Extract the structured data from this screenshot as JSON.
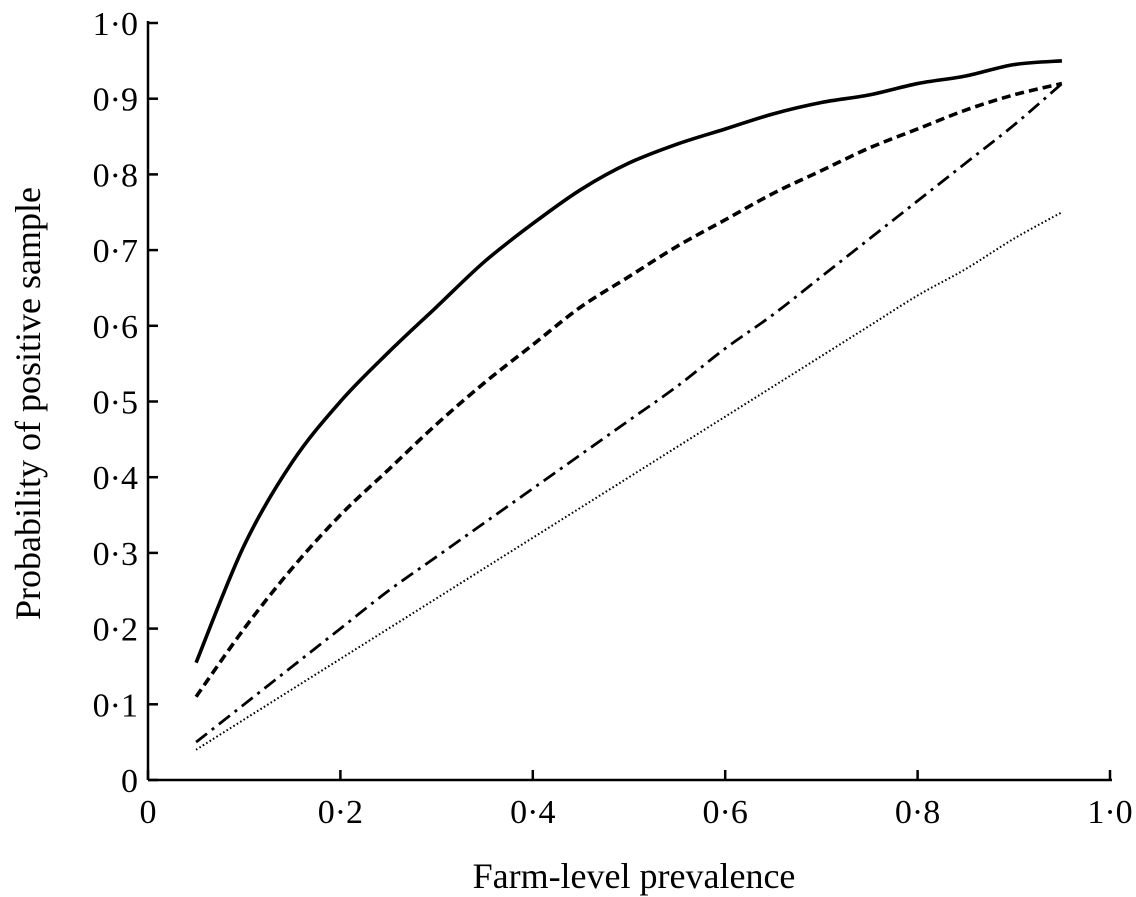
{
  "chart_data": {
    "type": "line",
    "title": "",
    "xlabel": "Farm-level prevalence",
    "ylabel": "Probability of positive sample",
    "xlim": [
      0,
      1.0
    ],
    "ylim": [
      0,
      1.0
    ],
    "x_ticks": [
      0,
      0.2,
      0.4,
      0.6,
      0.8,
      1.0
    ],
    "x_tick_labels": [
      "0",
      "0·2",
      "0·4",
      "0·6",
      "0·8",
      "1·0"
    ],
    "y_ticks": [
      0,
      0.1,
      0.2,
      0.3,
      0.4,
      0.5,
      0.6,
      0.7,
      0.8,
      0.9,
      1.0
    ],
    "y_tick_labels": [
      "0",
      "0·1",
      "0·2",
      "0·3",
      "0·4",
      "0·5",
      "0·6",
      "0·7",
      "0·8",
      "0·9",
      "1·0"
    ],
    "grid": false,
    "legend": "none",
    "x": [
      0.05,
      0.1,
      0.15,
      0.2,
      0.25,
      0.3,
      0.35,
      0.4,
      0.45,
      0.5,
      0.55,
      0.6,
      0.65,
      0.7,
      0.75,
      0.8,
      0.85,
      0.9,
      0.95
    ],
    "series": [
      {
        "style": "solid",
        "values": [
          0.155,
          0.31,
          0.42,
          0.5,
          0.565,
          0.625,
          0.685,
          0.735,
          0.78,
          0.815,
          0.84,
          0.86,
          0.88,
          0.895,
          0.905,
          0.92,
          0.93,
          0.945,
          0.95
        ]
      },
      {
        "style": "dashed",
        "values": [
          0.11,
          0.2,
          0.28,
          0.35,
          0.41,
          0.47,
          0.525,
          0.575,
          0.625,
          0.665,
          0.705,
          0.74,
          0.775,
          0.805,
          0.835,
          0.86,
          0.885,
          0.905,
          0.92
        ]
      },
      {
        "style": "dash-dot",
        "values": [
          0.05,
          0.1,
          0.15,
          0.2,
          0.25,
          0.295,
          0.34,
          0.385,
          0.43,
          0.475,
          0.52,
          0.57,
          0.615,
          0.665,
          0.715,
          0.765,
          0.815,
          0.865,
          0.92
        ]
      },
      {
        "style": "dotted",
        "values": [
          0.04,
          0.08,
          0.12,
          0.16,
          0.2,
          0.24,
          0.28,
          0.32,
          0.36,
          0.4,
          0.44,
          0.48,
          0.52,
          0.56,
          0.6,
          0.64,
          0.675,
          0.715,
          0.75
        ]
      }
    ]
  }
}
